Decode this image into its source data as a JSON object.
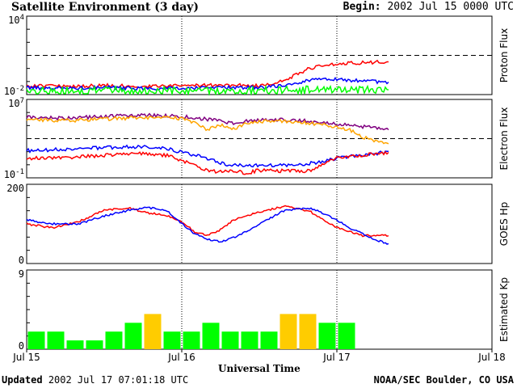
{
  "header": {
    "title": "Satellite Environment (3 day)",
    "begin_label": "Begin:",
    "begin_value": "2002 Jul 15 0000 UTC"
  },
  "footer": {
    "updated_label": "Updated",
    "updated_value": "2002 Jul 17 07:01:18 UTC",
    "credit": "NOAA/SEC Boulder, CO USA"
  },
  "x_axis": {
    "title": "Universal Time",
    "ticks": [
      "Jul 15",
      "Jul 16",
      "Jul 17",
      "Jul 18"
    ]
  },
  "colors": {
    "red": "#ff0000",
    "blue": "#0000ff",
    "green": "#00ff00",
    "orange": "#ffa500",
    "purple": "#800080",
    "kp_green": "#00ff00",
    "kp_yellow": "#ffcc00"
  },
  "chart_data": [
    {
      "type": "line",
      "panel": "proton",
      "ylabel": "Proton Flux",
      "yscale": "log",
      "ylim": [
        0.01,
        10000
      ],
      "yticks": [
        "10^4",
        "10^-2"
      ],
      "threshold": 10,
      "x_unit": "hours since Jul 15 0000 UTC",
      "series": [
        {
          "color": "red",
          "x": [
            0,
            6,
            12,
            18,
            24,
            30,
            36,
            40,
            42,
            44,
            46,
            48,
            50,
            52,
            54,
            56
          ],
          "y": [
            0.05,
            0.04,
            0.05,
            0.04,
            0.05,
            0.05,
            0.05,
            0.12,
            0.4,
            1.1,
            1.8,
            2.2,
            2.5,
            2.8,
            3.0,
            3.2
          ]
        },
        {
          "color": "blue",
          "x": [
            0,
            6,
            12,
            18,
            24,
            30,
            36,
            40,
            44,
            46,
            48,
            50,
            52,
            54,
            56
          ],
          "y": [
            0.035,
            0.03,
            0.035,
            0.03,
            0.03,
            0.035,
            0.035,
            0.05,
            0.13,
            0.16,
            0.15,
            0.13,
            0.11,
            0.1,
            0.09
          ]
        },
        {
          "color": "green",
          "x": [
            0,
            6,
            12,
            18,
            24,
            30,
            36,
            42,
            48,
            56
          ],
          "y": [
            0.022,
            0.02,
            0.021,
            0.02,
            0.021,
            0.02,
            0.021,
            0.022,
            0.022,
            0.023
          ]
        }
      ]
    },
    {
      "type": "line",
      "panel": "electron",
      "ylabel": "Electron Flux",
      "yscale": "log",
      "ylim": [
        0.1,
        10000000
      ],
      "yticks": [
        "10^7",
        "10^-1"
      ],
      "threshold": 1000,
      "x_unit": "hours since Jul 15 0000 UTC",
      "series": [
        {
          "color": "purple",
          "x": [
            0,
            6,
            12,
            18,
            24,
            28,
            32,
            34,
            38,
            42,
            46,
            50,
            54,
            56
          ],
          "y": [
            150000,
            120000,
            180000,
            250000,
            200000,
            90000,
            40000,
            60000,
            90000,
            80000,
            40000,
            25000,
            12000,
            8000
          ]
        },
        {
          "color": "orange",
          "x": [
            0,
            6,
            12,
            18,
            24,
            26,
            28,
            30,
            32,
            34,
            38,
            42,
            46,
            50,
            52,
            54,
            56
          ],
          "y": [
            90000,
            70000,
            100000,
            140000,
            120000,
            40000,
            8000,
            25000,
            10000,
            40000,
            70000,
            50000,
            25000,
            8000,
            1500,
            600,
            300
          ]
        },
        {
          "color": "blue",
          "x": [
            0,
            6,
            12,
            18,
            22,
            24,
            26,
            28,
            30,
            32,
            34,
            36,
            40,
            44,
            46,
            48,
            52,
            56
          ],
          "y": [
            60,
            80,
            120,
            150,
            100,
            40,
            20,
            10,
            3,
            2,
            2,
            2,
            2,
            3,
            5,
            10,
            20,
            50
          ]
        },
        {
          "color": "red",
          "x": [
            0,
            6,
            12,
            18,
            22,
            24,
            26,
            28,
            30,
            32,
            34,
            36,
            40,
            44,
            46,
            48,
            52,
            56
          ],
          "y": [
            10,
            12,
            20,
            30,
            18,
            6,
            2,
            0.6,
            0.4,
            0.5,
            0.3,
            0.6,
            0.5,
            0.5,
            3,
            10,
            20,
            40
          ]
        }
      ]
    },
    {
      "type": "line",
      "panel": "goes_hp",
      "ylabel": "GOES Hp",
      "ylim": [
        0,
        200
      ],
      "yticks": [
        "200",
        "0"
      ],
      "x_unit": "hours since Jul 15 0000 UTC",
      "series": [
        {
          "color": "red",
          "x": [
            0,
            4,
            8,
            12,
            16,
            18,
            20,
            22,
            24,
            26,
            28,
            30,
            32,
            34,
            36,
            40,
            44,
            48,
            50,
            52,
            54,
            56
          ],
          "y": [
            100,
            90,
            105,
            135,
            140,
            130,
            125,
            120,
            105,
            80,
            72,
            85,
            110,
            120,
            130,
            145,
            130,
            90,
            80,
            70,
            72,
            70
          ]
        },
        {
          "color": "blue",
          "x": [
            0,
            4,
            8,
            12,
            16,
            18,
            20,
            22,
            24,
            26,
            28,
            30,
            32,
            34,
            36,
            40,
            44,
            48,
            50,
            52,
            54,
            56
          ],
          "y": [
            110,
            100,
            100,
            120,
            135,
            140,
            140,
            130,
            100,
            75,
            60,
            55,
            65,
            80,
            100,
            135,
            140,
            110,
            90,
            75,
            60,
            50
          ]
        }
      ]
    },
    {
      "type": "bar",
      "panel": "kp",
      "ylabel": "Estimated Kp",
      "ylim": [
        0,
        9
      ],
      "yticks": [
        "9",
        "0"
      ],
      "values": [
        2,
        2,
        1,
        1,
        2,
        3,
        4,
        2,
        2,
        3,
        2,
        2,
        2,
        4,
        4,
        3,
        3
      ],
      "bar_colors": [
        "green",
        "green",
        "green",
        "green",
        "green",
        "green",
        "yellow",
        "green",
        "green",
        "green",
        "green",
        "green",
        "green",
        "yellow",
        "yellow",
        "green",
        "green"
      ]
    }
  ]
}
